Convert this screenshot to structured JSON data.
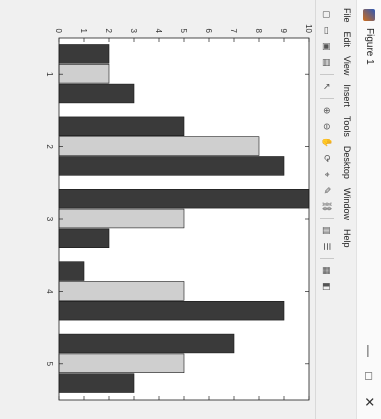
{
  "window": {
    "title": "Figure 1",
    "minimize_glyph": "—",
    "maximize_glyph": "□",
    "close_glyph": "✕"
  },
  "menu": {
    "items": [
      "File",
      "Edit",
      "View",
      "Insert",
      "Tools",
      "Desktop",
      "Window",
      "Help"
    ]
  },
  "toolbar": {
    "icons": [
      {
        "name": "new-figure-icon",
        "glyph": "▢"
      },
      {
        "name": "open-file-icon",
        "glyph": "▭"
      },
      {
        "name": "save-icon",
        "glyph": "▣"
      },
      {
        "name": "print-icon",
        "glyph": "▤"
      },
      {
        "sep": true
      },
      {
        "name": "pointer-icon",
        "glyph": "↖"
      },
      {
        "sep": true
      },
      {
        "name": "zoom-in-icon",
        "glyph": "⊕"
      },
      {
        "name": "zoom-out-icon",
        "glyph": "⊖"
      },
      {
        "name": "pan-icon",
        "glyph": "✋"
      },
      {
        "name": "rotate-3d-icon",
        "glyph": "⟳"
      },
      {
        "name": "data-cursor-icon",
        "glyph": "⌖"
      },
      {
        "name": "brush-icon",
        "glyph": "✎"
      },
      {
        "name": "link-icon",
        "glyph": "⛓"
      },
      {
        "sep": true
      },
      {
        "name": "colorbar-icon",
        "glyph": "▥"
      },
      {
        "name": "legend-icon",
        "glyph": "☰"
      },
      {
        "sep": true
      },
      {
        "name": "hide-tools-icon",
        "glyph": "▦"
      },
      {
        "name": "dock-icon",
        "glyph": "◧"
      }
    ]
  },
  "chart_data": {
    "type": "bar",
    "categories": [
      "1",
      "2",
      "3",
      "4",
      "5"
    ],
    "series": [
      {
        "color": "#3a3a3a",
        "values": [
          2,
          5,
          10,
          1,
          7
        ]
      },
      {
        "color": "#cfcfcf",
        "values": [
          2,
          8,
          5,
          5,
          5
        ]
      },
      {
        "color": "#3a3a3a",
        "values": [
          3,
          9,
          2,
          9,
          3
        ]
      }
    ],
    "ylim": [
      0,
      10
    ],
    "yticks": [
      "0",
      "1",
      "2",
      "3",
      "4",
      "5",
      "6",
      "7",
      "8",
      "9",
      "10"
    ],
    "grid": false,
    "title": "",
    "xlabel": "",
    "ylabel": ""
  }
}
